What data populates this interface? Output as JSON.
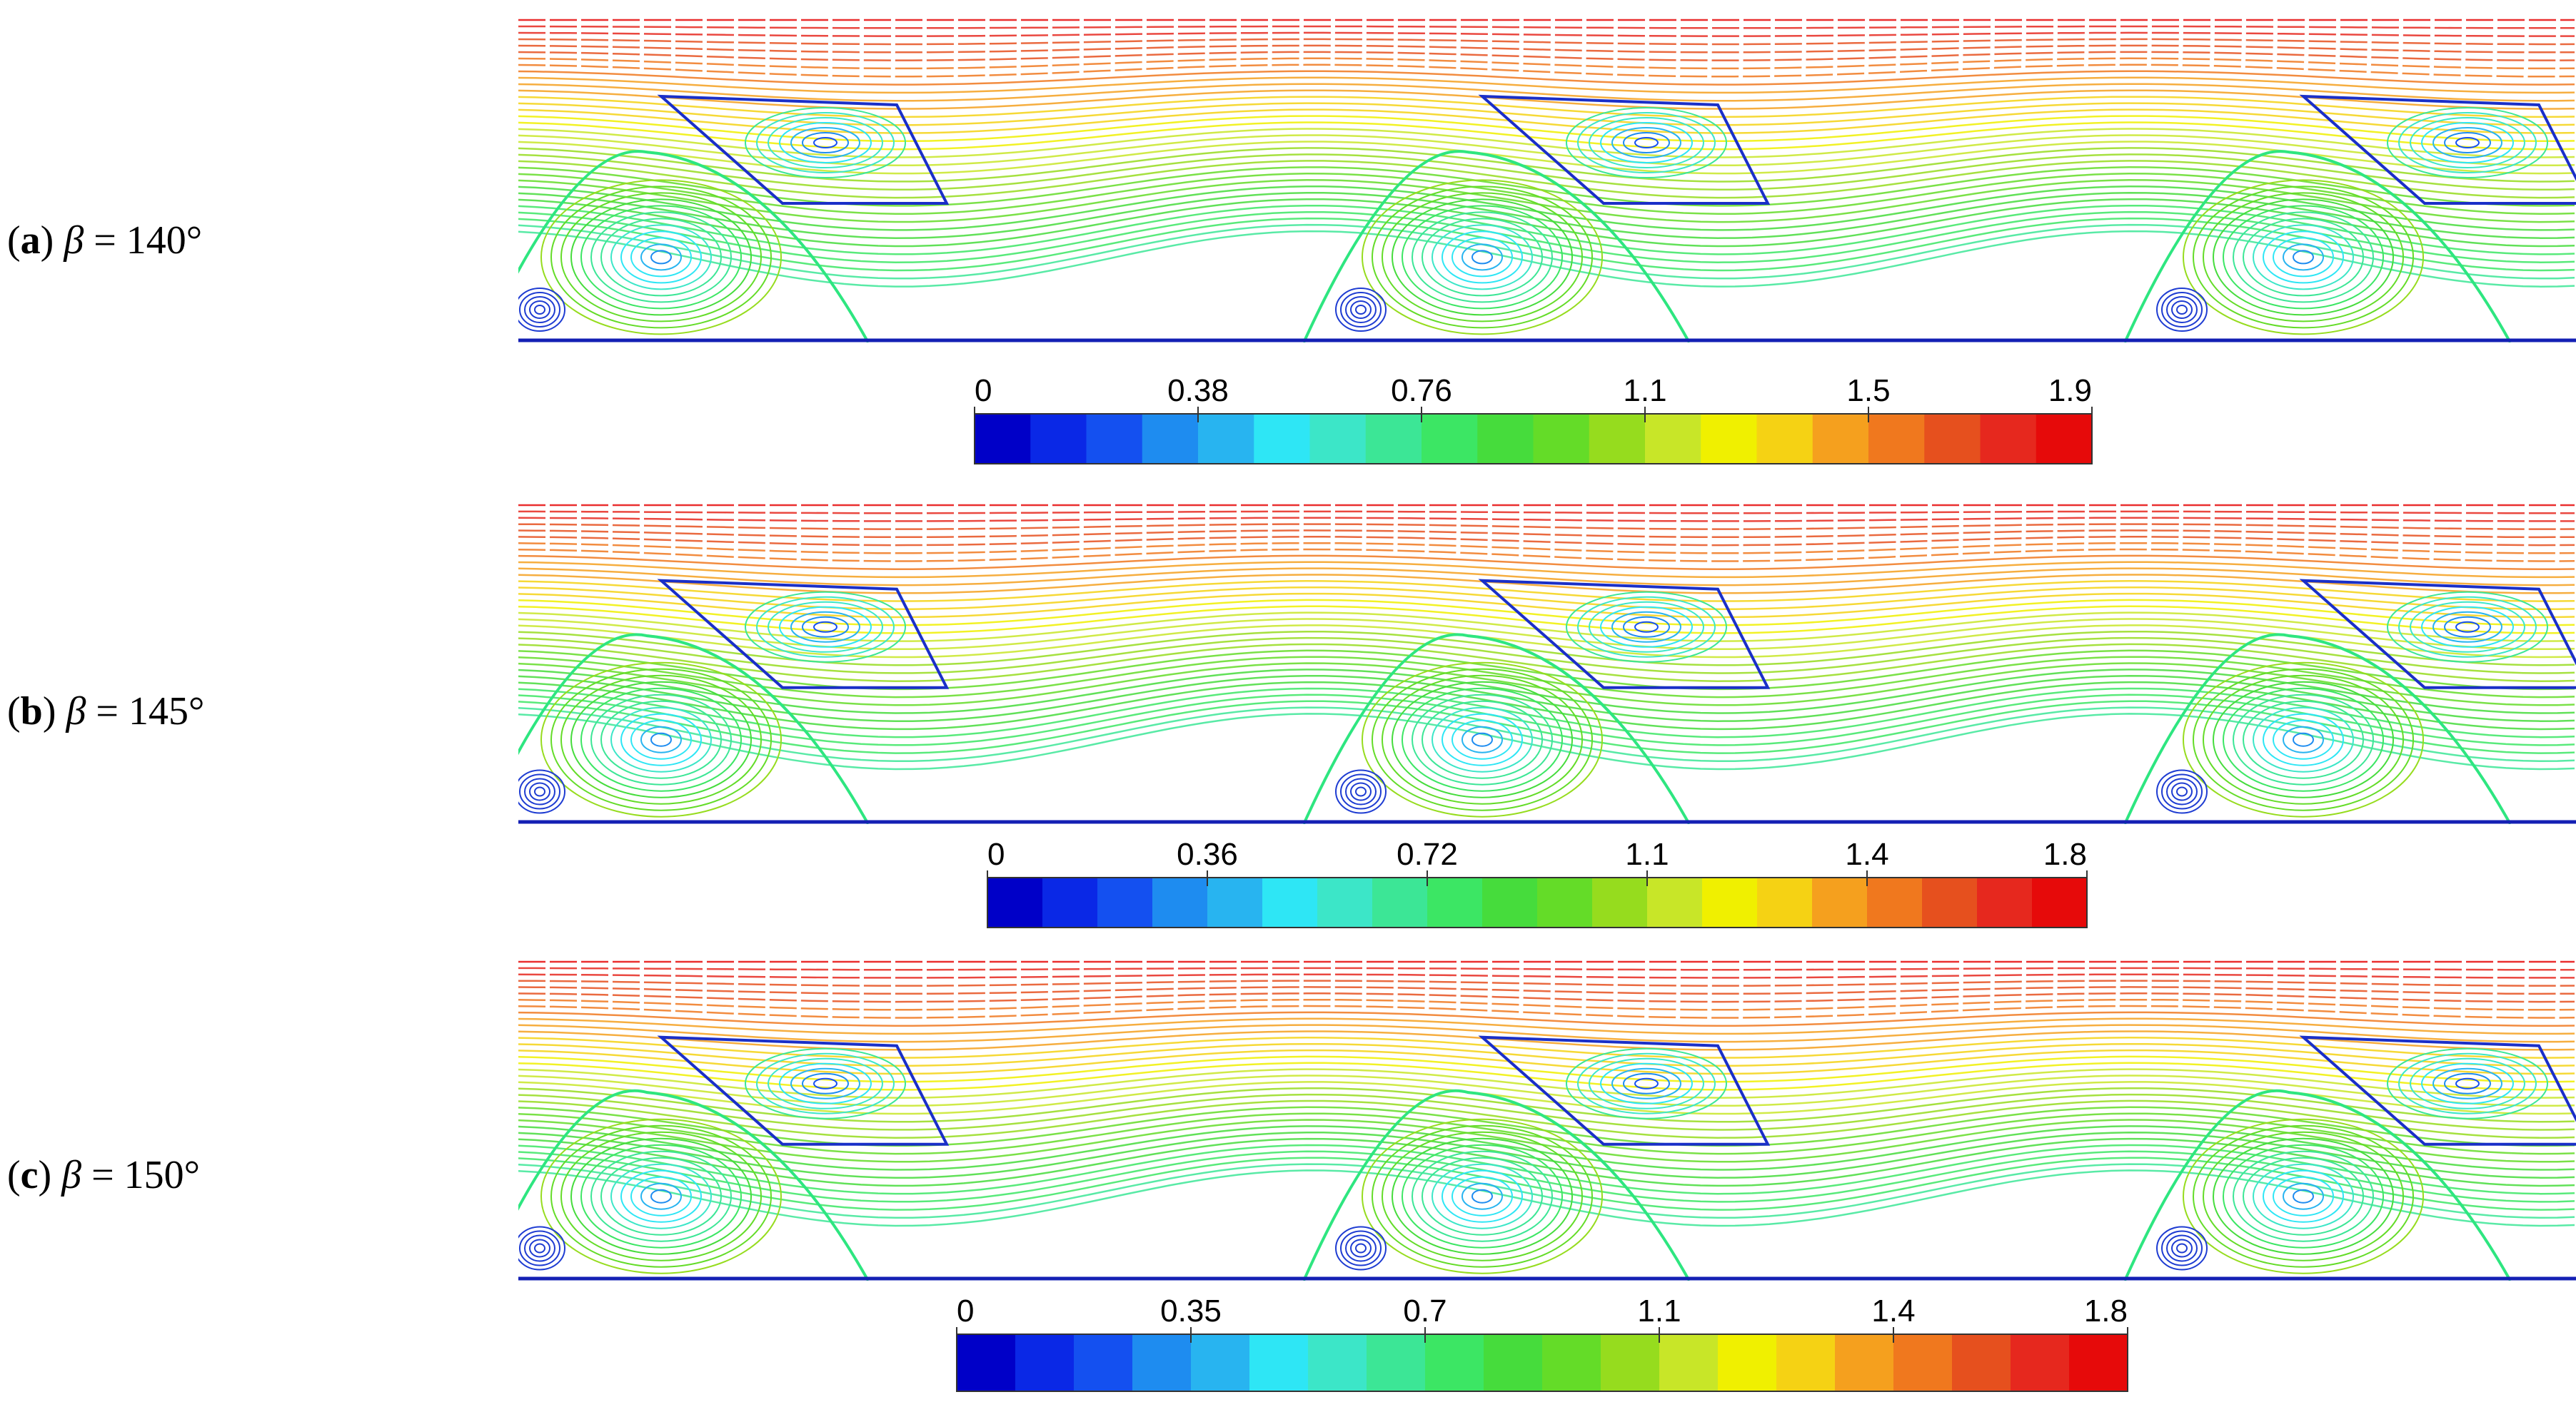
{
  "panels": [
    {
      "id": "a",
      "letter": "a",
      "symbol": "β",
      "equals": " = ",
      "value": "140°",
      "colorbar": {
        "min": 0,
        "max": 1.9,
        "tick_labels": [
          "0",
          "0.38",
          "0.76",
          "1.1",
          "1.5",
          "1.9"
        ],
        "levels": 20
      }
    },
    {
      "id": "b",
      "letter": "b",
      "symbol": "β",
      "equals": " = ",
      "value": "145°",
      "colorbar": {
        "min": 0,
        "max": 1.8,
        "tick_labels": [
          "0",
          "0.36",
          "0.72",
          "1.1",
          "1.4",
          "1.8"
        ],
        "levels": 20
      }
    },
    {
      "id": "c",
      "letter": "c",
      "symbol": "β",
      "equals": " = ",
      "value": "150°",
      "colorbar": {
        "min": 0,
        "max": 1.8,
        "tick_labels": [
          "0",
          "0.35",
          "0.7",
          "1.1",
          "1.4",
          "1.8"
        ],
        "levels": 20
      }
    }
  ],
  "colormap": [
    "#0000c8",
    "#0a28e6",
    "#1450f0",
    "#1e8cf0",
    "#28b4f0",
    "#2ee6f5",
    "#3ce6c8",
    "#3ce696",
    "#3ce664",
    "#46dc3c",
    "#64dc28",
    "#96dc1e",
    "#c8e628",
    "#f0f000",
    "#f5d214",
    "#f5a01e",
    "#f0781e",
    "#e6501e",
    "#e6281e",
    "#e60a0a"
  ]
}
